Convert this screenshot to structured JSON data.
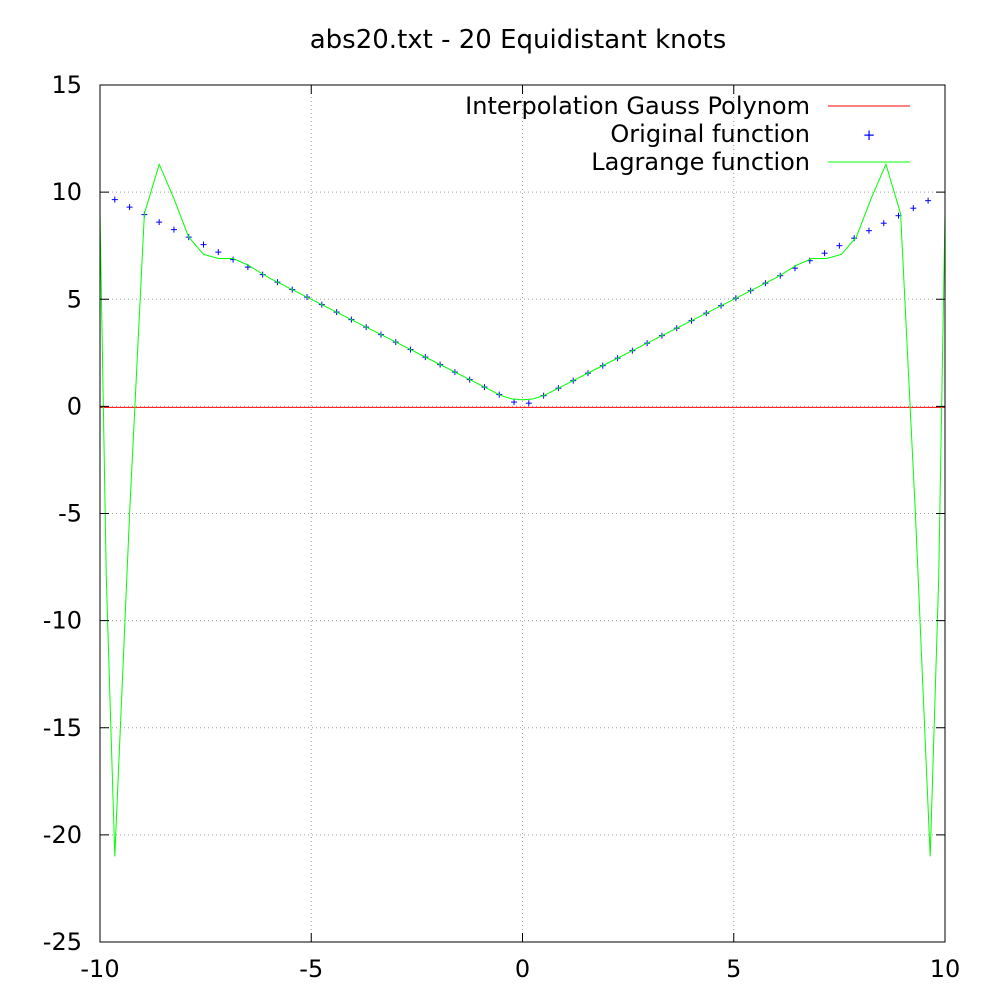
{
  "chart_data": {
    "type": "line",
    "title": "abs20.txt - 20 Equidistant knots",
    "xlabel": "",
    "ylabel": "",
    "xlim": [
      -10,
      10
    ],
    "ylim": [
      -25,
      15
    ],
    "xticks": [
      -10,
      -5,
      0,
      5,
      10
    ],
    "xtick_labels": [
      "-10",
      "-5",
      "0",
      "5",
      "10"
    ],
    "yticks": [
      -25,
      -20,
      -15,
      -10,
      -5,
      0,
      5,
      10,
      15
    ],
    "ytick_labels": [
      "-25",
      "-20",
      "-15",
      "-10",
      "-5",
      "0",
      "5",
      "10",
      "15"
    ],
    "grid": true,
    "legend_position": "top-right",
    "series": [
      {
        "name": "Interpolation Gauss Polynom",
        "style": "line",
        "color": "#ff0000",
        "x": [
          -10,
          10
        ],
        "y": [
          -0.05,
          -0.05
        ]
      },
      {
        "name": "Original function",
        "style": "points",
        "marker": "+",
        "color": "#0000ff",
        "x": [
          -9.65,
          -9.3,
          -8.95,
          -8.6,
          -8.25,
          -7.9,
          -7.55,
          -7.2,
          -6.85,
          -6.5,
          -6.15,
          -5.8,
          -5.45,
          -5.1,
          -4.75,
          -4.4,
          -4.05,
          -3.7,
          -3.35,
          -3.0,
          -2.65,
          -2.3,
          -1.95,
          -1.6,
          -1.25,
          -0.9,
          -0.55,
          -0.2,
          0.15,
          0.5,
          0.85,
          1.2,
          1.55,
          1.9,
          2.25,
          2.6,
          2.95,
          3.3,
          3.65,
          4.0,
          4.35,
          4.7,
          5.05,
          5.4,
          5.75,
          6.1,
          6.45,
          6.8,
          7.15,
          7.5,
          7.85,
          8.2,
          8.55,
          8.9,
          9.25,
          9.6
        ],
        "y": [
          9.65,
          9.3,
          8.95,
          8.6,
          8.25,
          7.9,
          7.55,
          7.2,
          6.85,
          6.5,
          6.15,
          5.8,
          5.45,
          5.1,
          4.75,
          4.4,
          4.05,
          3.7,
          3.35,
          3.0,
          2.65,
          2.3,
          1.95,
          1.6,
          1.25,
          0.9,
          0.55,
          0.2,
          0.15,
          0.5,
          0.85,
          1.2,
          1.55,
          1.9,
          2.25,
          2.6,
          2.95,
          3.3,
          3.65,
          4.0,
          4.35,
          4.7,
          5.05,
          5.4,
          5.75,
          6.1,
          6.45,
          6.8,
          7.15,
          7.5,
          7.85,
          8.2,
          8.55,
          8.9,
          9.25,
          9.6
        ]
      },
      {
        "name": "Lagrange function",
        "style": "line",
        "color": "#00ff00",
        "x": [
          -10,
          -9.85,
          -9.65,
          -9.3,
          -8.95,
          -8.6,
          -8.25,
          -7.9,
          -7.55,
          -7.2,
          -6.85,
          -6.5,
          -6.0,
          -5.0,
          -4.0,
          -3.0,
          -2.0,
          -1.0,
          -0.5,
          -0.25,
          0,
          0.25,
          0.5,
          1.0,
          2.0,
          3.0,
          4.0,
          5.0,
          6.0,
          6.5,
          6.85,
          7.2,
          7.55,
          7.9,
          8.25,
          8.6,
          8.95,
          9.3,
          9.65,
          9.85,
          10
        ],
        "y": [
          9.0,
          -8.0,
          -21.0,
          -5.0,
          9.0,
          11.3,
          9.7,
          7.9,
          7.1,
          6.9,
          6.9,
          6.6,
          6.0,
          5.0,
          4.0,
          3.0,
          2.0,
          1.0,
          0.5,
          0.35,
          0.3,
          0.35,
          0.5,
          1.0,
          2.0,
          3.0,
          4.0,
          5.0,
          6.0,
          6.6,
          6.9,
          6.9,
          7.1,
          7.9,
          9.7,
          11.3,
          9.0,
          -5.0,
          -21.0,
          -8.0,
          9.0
        ]
      }
    ]
  }
}
